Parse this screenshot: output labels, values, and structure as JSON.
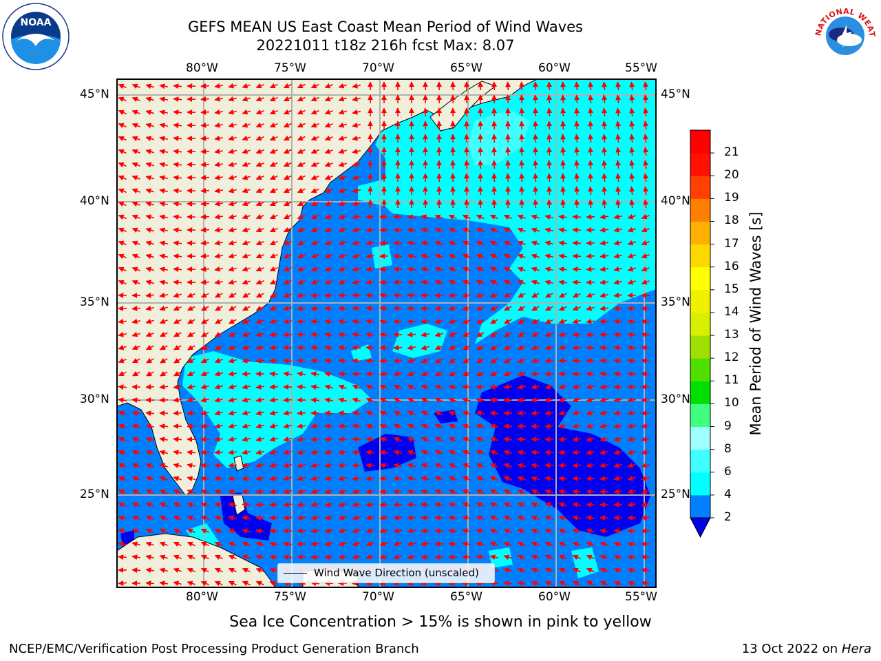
{
  "header": {
    "title_line1": "GEFS MEAN US East Coast Mean Period of Wind Waves",
    "title_line2": "20221011 t18z 216h fcst   Max: 8.07"
  },
  "map": {
    "lon_ticks": [
      "80°W",
      "75°W",
      "70°W",
      "65°W",
      "60°W",
      "55°W"
    ],
    "lat_ticks": [
      "45°N",
      "40°N",
      "35°N",
      "30°N",
      "25°N"
    ],
    "land_color": "#efefdc",
    "gridline_color": "#b0b0b0",
    "arrow_color": "#ff0000",
    "period_colors": {
      "2-4": "#0080ff",
      "4-6": "#00ffff",
      "6-8": "#40ffff",
      "under-2": "#0000f0"
    }
  },
  "legend": {
    "label": "Wind Wave Direction (unscaled)"
  },
  "colorbar": {
    "label": "Mean Period of Wind Waves [s]",
    "ticks": [
      "2",
      "4",
      "6",
      "8",
      "9",
      "10",
      "11",
      "12",
      "13",
      "14",
      "15",
      "16",
      "17",
      "18",
      "19",
      "20",
      "21"
    ],
    "colors": [
      "#0080ff",
      "#00ffff",
      "#40ffff",
      "#a0ffff",
      "#40ff80",
      "#00e000",
      "#50e000",
      "#a0e000",
      "#d8f000",
      "#f0f000",
      "#ffff00",
      "#ffd800",
      "#ffb000",
      "#ff8000",
      "#ff4000",
      "#ff1000",
      "#ff0000"
    ],
    "extend_color": "#0000e0"
  },
  "note": "Sea Ice Concentration > 15% is shown in pink to yellow",
  "footer": {
    "left": "NCEP/EMC/Verification Post Processing Product Generation Branch",
    "date": "13 Oct 2022 on",
    "machine": "Hera"
  },
  "logos": {
    "noaa_text": "NOAA",
    "nws_text": "NATIONAL WEATHER SERVICE"
  }
}
